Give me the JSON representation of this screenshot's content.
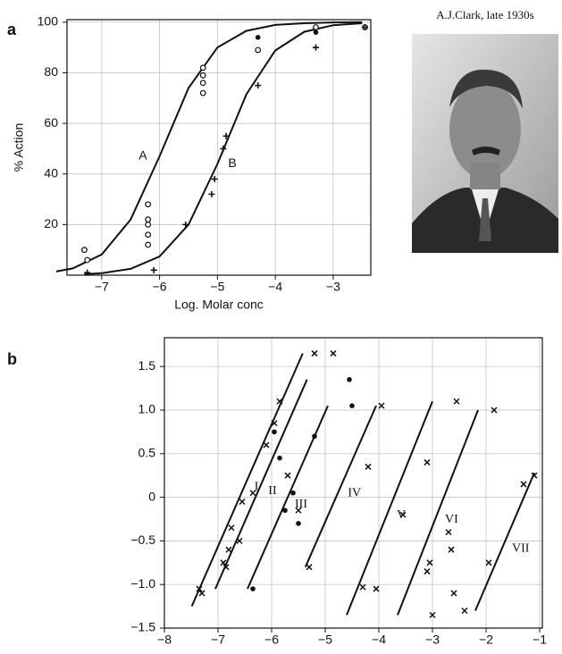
{
  "panels": [
    "a",
    "b"
  ],
  "photo_caption": "A.J.Clark, late 1930s",
  "chart_data": [
    {
      "type": "line",
      "ylabel": "% Action",
      "xlabel": "Log. Molar conc",
      "xlim": [
        -7.6,
        -2.35
      ],
      "ylim": [
        0,
        101
      ],
      "grid": true,
      "xticks": [
        {
          "value": -7,
          "label": "−7"
        },
        {
          "value": -6,
          "label": "−6"
        },
        {
          "value": -5,
          "label": "−5"
        },
        {
          "value": -4,
          "label": "−4"
        },
        {
          "value": -3,
          "label": "−3"
        }
      ],
      "yticks": [
        20,
        40,
        60,
        80,
        100
      ],
      "series": [
        {
          "name": "A",
          "kind": "line",
          "color": "#111111",
          "x": [
            -7.8,
            -7.5,
            -7,
            -6.5,
            -6,
            -5.5,
            -5,
            -4.5,
            -4,
            -3.5,
            -3,
            -2.5
          ],
          "values": [
            1.4,
            2.7,
            8.2,
            22,
            47,
            74,
            90,
            96.6,
            98.9,
            99.6,
            99.9,
            100
          ]
        },
        {
          "name": "B",
          "kind": "line",
          "color": "#111111",
          "x": [
            -7.3,
            -7,
            -6.5,
            -6,
            -5.5,
            -5,
            -4.5,
            -4,
            -3.5,
            -3,
            -2.5
          ],
          "values": [
            0.4,
            0.8,
            2.5,
            7.4,
            20,
            44,
            71.5,
            88.8,
            96.2,
            98.8,
            99.6
          ]
        },
        {
          "kind": "scatter",
          "marker": "circle",
          "color": "#111111",
          "x": [
            -7.3,
            -7.25,
            -6.2,
            -6.2,
            -6.2,
            -6.2,
            -6.2,
            -5.25,
            -5.25,
            -5.25,
            -5.25,
            -4.3,
            -3.3,
            -2.45
          ],
          "values": [
            10,
            6,
            28,
            22,
            20,
            16,
            12,
            82,
            79,
            76,
            72,
            89,
            98,
            98
          ]
        },
        {
          "kind": "scatter",
          "marker": "cross",
          "color": "#111111",
          "x": [
            -7.25,
            -6.1,
            -5.55,
            -5.1,
            -5.05,
            -4.9,
            -4.85,
            -4.3,
            -3.3,
            -2.45
          ],
          "values": [
            1,
            2,
            20,
            32,
            38,
            50,
            55,
            75,
            90,
            98
          ]
        },
        {
          "kind": "scatter",
          "marker": "dot",
          "color": "#111111",
          "x": [
            -4.3,
            -3.3
          ],
          "values": [
            94,
            96
          ]
        }
      ]
    },
    {
      "type": "line",
      "xlim": [
        -8,
        -0.95
      ],
      "ylim": [
        -1.5,
        1.83
      ],
      "grid": true,
      "xticks": [
        {
          "value": -8,
          "label": "−8"
        },
        {
          "value": -7,
          "label": "−7"
        },
        {
          "value": -6,
          "label": "−6"
        },
        {
          "value": -5,
          "label": "−5"
        },
        {
          "value": -4,
          "label": "−4"
        },
        {
          "value": -3,
          "label": "−3"
        },
        {
          "value": -2,
          "label": "−2"
        },
        {
          "value": -1,
          "label": "−1"
        }
      ],
      "yticks": [
        {
          "value": -1.5,
          "label": "−1.5"
        },
        {
          "value": -1,
          "label": "−1.0"
        },
        {
          "value": -0.5,
          "label": "−0.5"
        },
        0,
        0.5,
        {
          "value": 1,
          "label": "1.0"
        },
        1.5
      ],
      "series": [
        {
          "name": "I",
          "kind": "line",
          "color": "#111111",
          "x": [
            -7.49,
            -5.42
          ],
          "values": [
            -1.25,
            1.65
          ]
        },
        {
          "name": "II",
          "kind": "line",
          "color": "#111111",
          "x": [
            -7.05,
            -5.34
          ],
          "values": [
            -1.05,
            1.35
          ]
        },
        {
          "name": "III",
          "kind": "line",
          "color": "#111111",
          "x": [
            -6.45,
            -4.95
          ],
          "values": [
            -1.05,
            1.05
          ]
        },
        {
          "name": "IV",
          "kind": "line",
          "color": "#111111",
          "x": [
            -5.37,
            -4.05
          ],
          "values": [
            -0.8,
            1.05
          ]
        },
        {
          "name": "V",
          "kind": "line",
          "color": "#111111",
          "x": [
            -4.6,
            -3.0
          ],
          "values": [
            -1.35,
            1.1
          ]
        },
        {
          "name": "VI",
          "kind": "line",
          "color": "#111111",
          "x": [
            -3.65,
            -2.15
          ],
          "values": [
            -1.35,
            1.0
          ]
        },
        {
          "name": "VII",
          "kind": "line",
          "color": "#111111",
          "x": [
            -2.2,
            -1.1
          ],
          "values": [
            -1.3,
            0.28
          ]
        },
        {
          "kind": "scatter",
          "marker": "x",
          "color": "#111111",
          "x": [
            -7.35,
            -7.3,
            -6.9,
            -6.85,
            -6.8,
            -6.75,
            -6.6,
            -6.55,
            -6.35,
            -6.1,
            -5.95,
            -5.85,
            -5.7,
            -5.5,
            -5.3,
            -5.2,
            -4.85,
            -4.3,
            -4.2,
            -3.95,
            -4.05,
            -3.55,
            -3.1,
            -3.05,
            -3.1,
            -3.0,
            -2.7,
            -2.65,
            -2.55,
            -2.6,
            -2.4,
            -1.95,
            -1.85,
            -1.3,
            -1.1
          ],
          "values": [
            -1.05,
            -1.1,
            -0.75,
            -0.8,
            -0.6,
            -0.35,
            -0.5,
            -0.05,
            0.05,
            0.6,
            0.85,
            1.1,
            0.25,
            -0.15,
            -0.8,
            1.65,
            1.65,
            -1.03,
            0.35,
            1.05,
            -1.05,
            -0.2,
            0.4,
            -0.75,
            -0.85,
            -1.35,
            -0.4,
            -0.6,
            1.1,
            -1.1,
            -1.3,
            -0.75,
            1.0,
            0.15,
            0.25
          ]
        },
        {
          "kind": "scatter",
          "marker": "dot",
          "color": "#111111",
          "x": [
            -5.95,
            -5.85,
            -5.75,
            -5.6,
            -5.5,
            -5.2,
            -4.55,
            -4.5,
            -6.35
          ],
          "values": [
            0.75,
            0.45,
            -0.15,
            0.05,
            -0.3,
            0.7,
            1.35,
            1.05,
            -1.05
          ]
        }
      ]
    }
  ]
}
